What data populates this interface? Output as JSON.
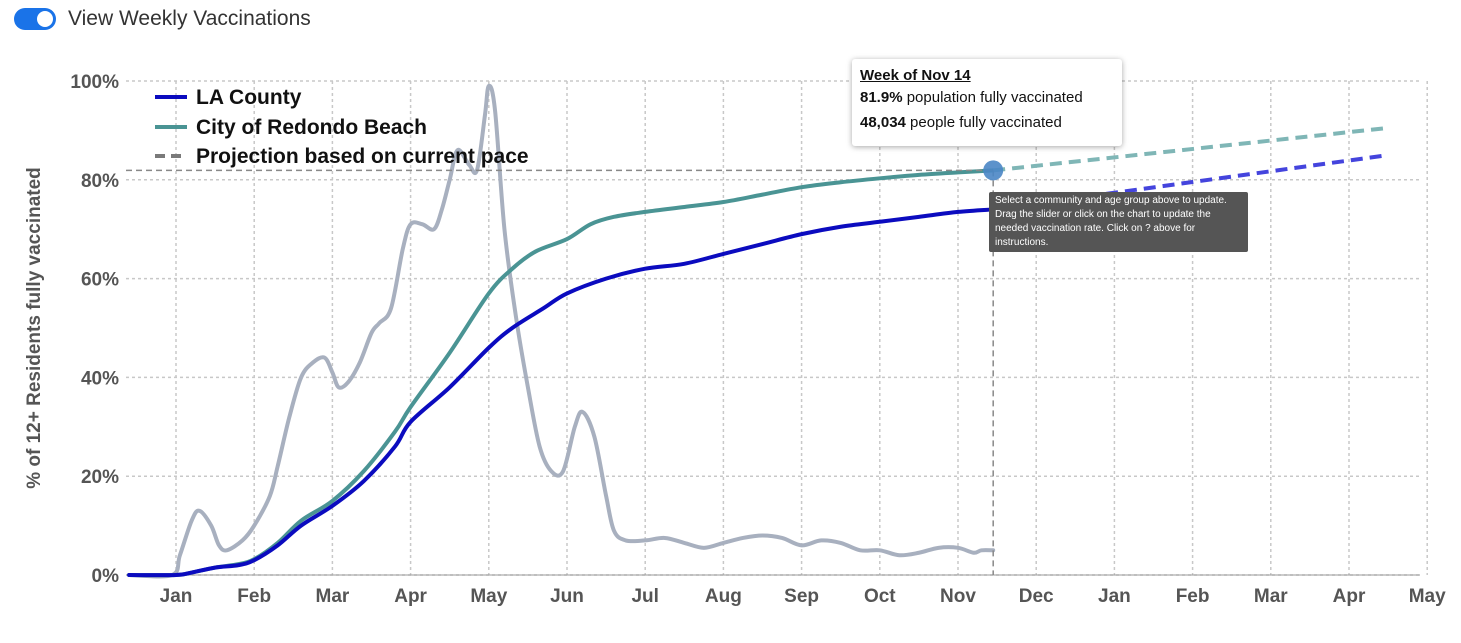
{
  "toggle": {
    "label": "View Weekly Vaccinations",
    "on": true,
    "color": "#1a73e8"
  },
  "tooltip": {
    "title": "Week of Nov 14",
    "line1_value": "81.9%",
    "line1_text": " population fully vaccinated",
    "line2_value": "48,034",
    "line2_text": " people fully vaccinated"
  },
  "info_box": {
    "text": "Select a community and age group above to update. Drag the slider or click on the chart to update the needed vaccination rate. Click on ? above for instructions."
  },
  "colors": {
    "la_county": "#0b0bbf",
    "redondo": "#4a9494",
    "weekly": "#a8b0bf",
    "proj_la": "#4444dd",
    "proj_redondo": "#7fb6b6",
    "grid": "#cccccc",
    "marker": "#4a86c5"
  },
  "chart_data": {
    "type": "line",
    "ylabel": "% of 12+ Residents fully vaccinated",
    "xlabel": "",
    "ylim": [
      0,
      100
    ],
    "yticks": [
      "0%",
      "20%",
      "40%",
      "60%",
      "80%",
      "100%"
    ],
    "x_month_labels": [
      "Jan",
      "Feb",
      "Mar",
      "Apr",
      "May",
      "Jun",
      "Jul",
      "Aug",
      "Sep",
      "Oct",
      "Nov",
      "Dec",
      "Jan",
      "Feb",
      "Mar",
      "Apr",
      "May"
    ],
    "legend_placement": "top-left",
    "legend": [
      {
        "label": "LA County",
        "style": "solid",
        "color_key": "la_county"
      },
      {
        "label": "City of Redondo Beach",
        "style": "solid",
        "color_key": "redondo"
      },
      {
        "label": "Projection based on current pace",
        "style": "dashed",
        "color_key": "grid_dark"
      }
    ],
    "grid": true,
    "x_unit": "months from Jan 1 of first year",
    "series": [
      {
        "name": "LA County",
        "key": "la_county",
        "points": [
          [
            -0.6,
            0
          ],
          [
            0,
            0
          ],
          [
            0.2,
            0.5
          ],
          [
            0.5,
            1.5
          ],
          [
            0.8,
            2
          ],
          [
            1,
            3
          ],
          [
            1.3,
            6
          ],
          [
            1.6,
            10
          ],
          [
            2,
            14
          ],
          [
            2.4,
            19
          ],
          [
            2.8,
            26
          ],
          [
            3,
            31
          ],
          [
            3.5,
            38
          ],
          [
            4,
            46
          ],
          [
            4.3,
            50
          ],
          [
            4.7,
            54
          ],
          [
            5,
            57
          ],
          [
            5.5,
            60
          ],
          [
            6,
            62
          ],
          [
            6.5,
            63
          ],
          [
            7,
            65
          ],
          [
            7.5,
            67
          ],
          [
            8,
            69
          ],
          [
            8.5,
            70.5
          ],
          [
            9,
            71.5
          ],
          [
            9.5,
            72.5
          ],
          [
            10,
            73.5
          ],
          [
            10.45,
            74
          ]
        ]
      },
      {
        "name": "City of Redondo Beach",
        "key": "redondo",
        "points": [
          [
            -0.6,
            0
          ],
          [
            0,
            0
          ],
          [
            0.2,
            0.5
          ],
          [
            0.5,
            1.5
          ],
          [
            0.8,
            2.2
          ],
          [
            1,
            3.2
          ],
          [
            1.3,
            6.5
          ],
          [
            1.6,
            11
          ],
          [
            2,
            15
          ],
          [
            2.4,
            21
          ],
          [
            2.8,
            29
          ],
          [
            3,
            34
          ],
          [
            3.5,
            45
          ],
          [
            4,
            57
          ],
          [
            4.3,
            62
          ],
          [
            4.6,
            65.5
          ],
          [
            5,
            68
          ],
          [
            5.3,
            71
          ],
          [
            5.6,
            72.5
          ],
          [
            6,
            73.5
          ],
          [
            6.5,
            74.5
          ],
          [
            7,
            75.5
          ],
          [
            7.5,
            77
          ],
          [
            8,
            78.5
          ],
          [
            8.5,
            79.5
          ],
          [
            9,
            80.3
          ],
          [
            9.5,
            81
          ],
          [
            10,
            81.5
          ],
          [
            10.45,
            81.9
          ]
        ]
      },
      {
        "name": "Weekly",
        "key": "weekly",
        "points": [
          [
            -0.6,
            0
          ],
          [
            -0.05,
            0
          ],
          [
            0.05,
            4
          ],
          [
            0.2,
            11
          ],
          [
            0.3,
            13
          ],
          [
            0.45,
            10
          ],
          [
            0.55,
            6
          ],
          [
            0.65,
            5
          ],
          [
            0.85,
            7
          ],
          [
            1,
            10
          ],
          [
            1.2,
            16
          ],
          [
            1.3,
            22
          ],
          [
            1.45,
            32
          ],
          [
            1.6,
            40
          ],
          [
            1.75,
            43
          ],
          [
            1.9,
            44
          ],
          [
            2,
            41
          ],
          [
            2.08,
            38
          ],
          [
            2.2,
            39
          ],
          [
            2.35,
            43
          ],
          [
            2.5,
            49
          ],
          [
            2.6,
            51
          ],
          [
            2.75,
            54
          ],
          [
            2.9,
            66
          ],
          [
            3,
            71
          ],
          [
            3.15,
            71
          ],
          [
            3.3,
            70
          ],
          [
            3.4,
            74
          ],
          [
            3.5,
            80
          ],
          [
            3.6,
            86
          ],
          [
            3.75,
            83
          ],
          [
            3.85,
            82
          ],
          [
            3.95,
            93
          ],
          [
            4,
            99
          ],
          [
            4.08,
            94
          ],
          [
            4.2,
            70
          ],
          [
            4.35,
            52
          ],
          [
            4.5,
            38
          ],
          [
            4.65,
            26
          ],
          [
            4.8,
            21
          ],
          [
            4.95,
            21
          ],
          [
            5.1,
            30
          ],
          [
            5.2,
            33
          ],
          [
            5.35,
            28
          ],
          [
            5.5,
            16
          ],
          [
            5.6,
            9
          ],
          [
            5.75,
            7
          ],
          [
            6,
            7
          ],
          [
            6.25,
            7.5
          ],
          [
            6.5,
            6.5
          ],
          [
            6.75,
            5.5
          ],
          [
            7,
            6.5
          ],
          [
            7.25,
            7.5
          ],
          [
            7.5,
            8
          ],
          [
            7.75,
            7.5
          ],
          [
            8,
            6
          ],
          [
            8.25,
            7
          ],
          [
            8.5,
            6.5
          ],
          [
            8.75,
            5
          ],
          [
            9,
            5
          ],
          [
            9.25,
            4
          ],
          [
            9.5,
            4.5
          ],
          [
            9.75,
            5.5
          ],
          [
            10,
            5.5
          ],
          [
            10.2,
            4.5
          ],
          [
            10.3,
            5
          ],
          [
            10.45,
            5
          ]
        ]
      }
    ],
    "projections": [
      {
        "name": "LA County projection",
        "key": "proj_la",
        "points": [
          [
            10.45,
            74
          ],
          [
            15.5,
            85
          ]
        ]
      },
      {
        "name": "Redondo Beach projection",
        "key": "proj_redondo",
        "points": [
          [
            10.45,
            81.9
          ],
          [
            15.5,
            90.5
          ]
        ]
      }
    ],
    "highlight": {
      "x": 10.45,
      "y": 81.9
    }
  }
}
